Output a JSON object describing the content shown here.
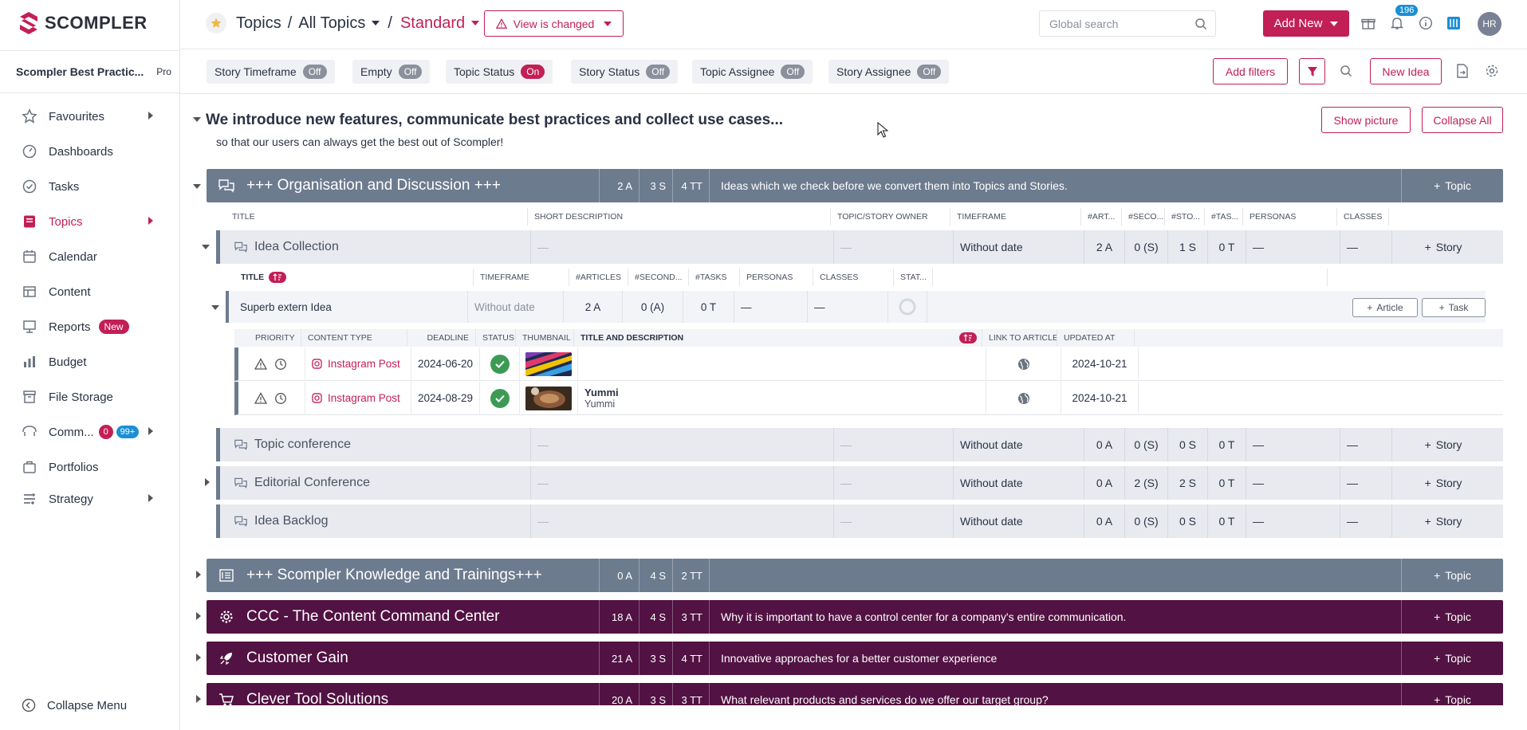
{
  "app": {
    "brand": "SCOMPLER",
    "accent": "#c21f56"
  },
  "sidebar": {
    "workspace": "Scompler Best Practic...",
    "plan": "Pro",
    "items": [
      {
        "label": "Favourites",
        "icon": "star-icon",
        "arrow": true
      },
      {
        "label": "Dashboards",
        "icon": "dashboard-icon"
      },
      {
        "label": "Tasks",
        "icon": "check-circle-icon"
      },
      {
        "label": "Topics",
        "icon": "topics-icon",
        "arrow": true,
        "active": true
      },
      {
        "label": "Calendar",
        "icon": "calendar-icon"
      },
      {
        "label": "Content",
        "icon": "content-icon"
      },
      {
        "label": "Reports",
        "icon": "reports-icon",
        "badge": "New"
      },
      {
        "label": "Budget",
        "icon": "budget-icon"
      },
      {
        "label": "File Storage",
        "icon": "file-storage-icon"
      },
      {
        "label": "Comm...",
        "icon": "communication-icon",
        "badge_red": "0",
        "badge_blue": "99+",
        "arrow": true
      },
      {
        "label": "Portfolios",
        "icon": "portfolio-icon"
      },
      {
        "label": "Strategy",
        "icon": "strategy-icon",
        "arrow": true
      }
    ],
    "collapse": "Collapse Menu"
  },
  "header": {
    "crumb1": "Topics",
    "sep": "/",
    "crumb2": "All Topics",
    "crumb3": "Standard",
    "view_changed": "View is changed",
    "search_placeholder": "Global search",
    "add_new": "Add New",
    "notifications": "196",
    "avatar": "HR"
  },
  "filters": {
    "chips": [
      {
        "label": "Story Timeframe",
        "state": "Off"
      },
      {
        "label": "Empty",
        "state": "Off"
      },
      {
        "label": "Topic Status",
        "state": "On"
      },
      {
        "label": "Story Status",
        "state": "Off"
      },
      {
        "label": "Topic Assignee",
        "state": "Off"
      },
      {
        "label": "Story Assignee",
        "state": "Off"
      }
    ],
    "add_filters": "Add filters",
    "new_idea": "New Idea"
  },
  "intro": {
    "title": "We introduce new features, communicate best practices and collect use cases...",
    "subtitle": "so that our users can always get the best out of Scompler!",
    "show_picture": "Show picture",
    "collapse_all": "Collapse All"
  },
  "topics": [
    {
      "title": "+++ Organisation and Discussion +++",
      "a": "2 A",
      "s": "3 S",
      "tt": "4 TT",
      "desc": "Ideas which we check before we convert them into Topics and Stories.",
      "color": "#6d7b8f"
    },
    {
      "title": "+++ Scompler Knowledge and Trainings+++",
      "a": "0 A",
      "s": "4 S",
      "tt": "2 TT",
      "desc": "",
      "color": "#6d7b8f"
    },
    {
      "title": "CCC - The Content Command Center",
      "a": "18 A",
      "s": "4 S",
      "tt": "3 TT",
      "desc": "Why it is important to have a control center for a company's entire communication.",
      "color": "#521243"
    },
    {
      "title": "Customer Gain",
      "a": "21 A",
      "s": "3 S",
      "tt": "4 TT",
      "desc": "Innovative approaches for a better customer experience",
      "color": "#521243"
    },
    {
      "title": "Clever Tool Solutions",
      "a": "20 A",
      "s": "3 S",
      "tt": "3 TT",
      "desc": "What relevant products and services do we offer our target group?",
      "color": "#521243"
    }
  ],
  "add_topic": "Topic",
  "story_cols": [
    "Title",
    "Short Description",
    "Topic/Story Owner",
    "Timeframe",
    "#Art...",
    "#Seco...",
    "#Sto...",
    "#Tas...",
    "Personas",
    "Classes"
  ],
  "stories": [
    {
      "title": "Idea Collection",
      "sd": "—",
      "owner": "—",
      "tf": "Without date",
      "art": "2 A",
      "sec": "0 (S)",
      "sto": "1 S",
      "tas": "0 T",
      "pers": "—",
      "cls": "—"
    },
    {
      "title": "Topic conference",
      "sd": "—",
      "owner": "—",
      "tf": "Without date",
      "art": "0 A",
      "sec": "0 (S)",
      "sto": "0 S",
      "tas": "0 T",
      "pers": "—",
      "cls": "—"
    },
    {
      "title": "Editorial Conference",
      "sd": "—",
      "owner": "—",
      "tf": "Without date",
      "art": "0 A",
      "sec": "2 (S)",
      "sto": "2 S",
      "tas": "0 T",
      "pers": "—",
      "cls": "—"
    },
    {
      "title": "Idea Backlog",
      "sd": "—",
      "owner": "—",
      "tf": "Without date",
      "art": "0 A",
      "sec": "0 (S)",
      "sto": "0 S",
      "tas": "0 T",
      "pers": "—",
      "cls": "—"
    }
  ],
  "add_story": "Story",
  "idea_cols": [
    "Title",
    "Timeframe",
    "#Articles",
    "#Second...",
    "#Tasks",
    "Personas",
    "Classes",
    "Stat..."
  ],
  "idea": {
    "title": "Superb extern Idea",
    "tf": "Without date",
    "art": "2 A",
    "sec": "0 (A)",
    "tasks": "0 T",
    "pers": "—",
    "cls": "—",
    "add_article": "Article",
    "add_task": "Task"
  },
  "article_cols": [
    "Priority",
    "Content Type",
    "Deadline",
    "Status",
    "Thumbnail",
    "Title and Description",
    "Link to Article",
    "Updated At"
  ],
  "articles": [
    {
      "type": "Instagram Post",
      "deadline": "2024-06-20",
      "title": "",
      "desc": "",
      "updated": "2024-10-21"
    },
    {
      "type": "Instagram Post",
      "deadline": "2024-08-29",
      "title": "Yummi",
      "desc": "Yummi",
      "updated": "2024-10-21"
    }
  ]
}
